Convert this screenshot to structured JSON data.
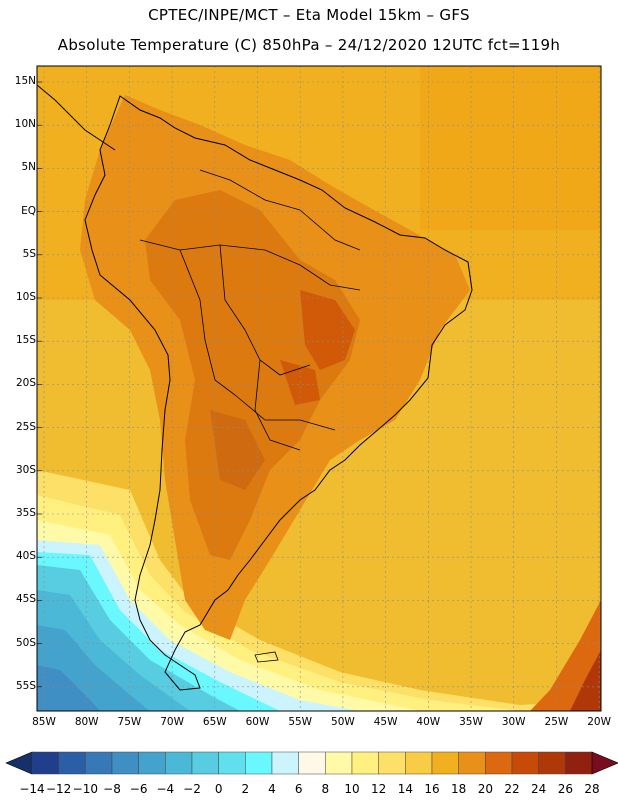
{
  "header": {
    "title_line1": "CPTEC/INPE/MCT –  Eta Model 15km – GFS",
    "title_line2": "Absolute Temperature (C) 850hPa – 24/12/2020 12UTC fct=119h"
  },
  "map": {
    "lat_labels": [
      "15N",
      "10N",
      "5N",
      "EQ",
      "5S",
      "10S",
      "15S",
      "20S",
      "25S",
      "30S",
      "35S",
      "40S",
      "45S",
      "50S",
      "55S"
    ],
    "lon_labels": [
      "85W",
      "80W",
      "75W",
      "70W",
      "65W",
      "60W",
      "55W",
      "50W",
      "45W",
      "40W",
      "35W",
      "30W",
      "25W",
      "20W"
    ]
  },
  "colorbar": {
    "labels": [
      "-14",
      "-12",
      "-10",
      "-8",
      "-6",
      "-4",
      "-2",
      "0",
      "2",
      "4",
      "6",
      "8",
      "10",
      "12",
      "14",
      "16",
      "18",
      "20",
      "22",
      "24",
      "26",
      "28"
    ],
    "colors": [
      "#1f3f8c",
      "#2a5fa8",
      "#3778b8",
      "#3f8ec4",
      "#44a3cc",
      "#4cb8d8",
      "#58cce0",
      "#60e0ec",
      "#6af8ff",
      "#ccf4ff",
      "#fff8e6",
      "#fffaa8",
      "#fff080",
      "#fde068",
      "#f8cc44",
      "#f0b020",
      "#e89018",
      "#dc6810",
      "#c84a08",
      "#b03808",
      "#902010"
    ],
    "under_color": "#16306a",
    "over_color": "#7a0c20"
  }
}
